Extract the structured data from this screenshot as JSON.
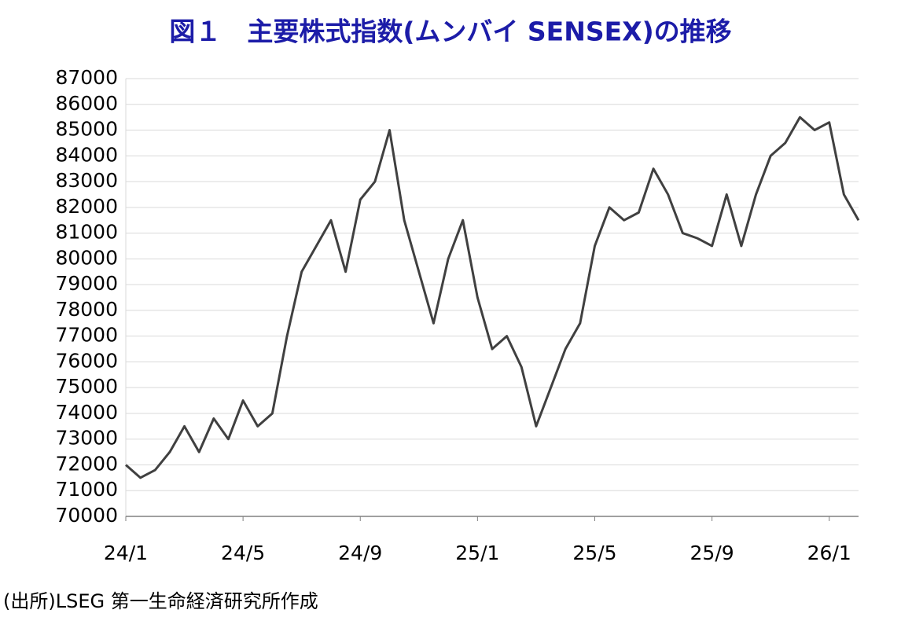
{
  "chart_data": {
    "type": "line",
    "title": "図１　主要株式指数(ムンバイ SENSEX)の推移",
    "source": "(出所)LSEG 第一生命経済研究所作成",
    "categories": [
      "24/1",
      null,
      null,
      null,
      null,
      null,
      null,
      null,
      "24/5",
      null,
      null,
      null,
      null,
      null,
      null,
      null,
      "24/9",
      null,
      null,
      null,
      null,
      null,
      null,
      null,
      "25/1",
      null,
      null,
      null,
      null,
      null,
      null,
      null,
      "25/5",
      null,
      null,
      null,
      null,
      null,
      null,
      null,
      "25/9",
      null,
      null,
      null,
      null,
      null,
      null,
      null,
      "26/1",
      null,
      null
    ],
    "values": [
      72000,
      71500,
      71800,
      72500,
      73500,
      72500,
      73800,
      73000,
      74500,
      73500,
      74000,
      77000,
      79500,
      80500,
      81500,
      79500,
      82300,
      83000,
      85000,
      81500,
      79500,
      77500,
      80000,
      81500,
      78500,
      76500,
      77000,
      75800,
      73500,
      75000,
      76500,
      77500,
      80500,
      82000,
      81500,
      81800,
      83500,
      82500,
      81000,
      80800,
      80500,
      82500,
      80500,
      82500,
      84000,
      84500,
      85500,
      85000,
      85300,
      82500,
      81500
    ],
    "color": "#404040",
    "ylim": [
      70000,
      87000
    ],
    "yticks": [
      70000,
      71000,
      72000,
      73000,
      74000,
      75000,
      76000,
      77000,
      78000,
      79000,
      80000,
      81000,
      82000,
      83000,
      84000,
      85000,
      86000,
      87000
    ],
    "grid": true
  }
}
